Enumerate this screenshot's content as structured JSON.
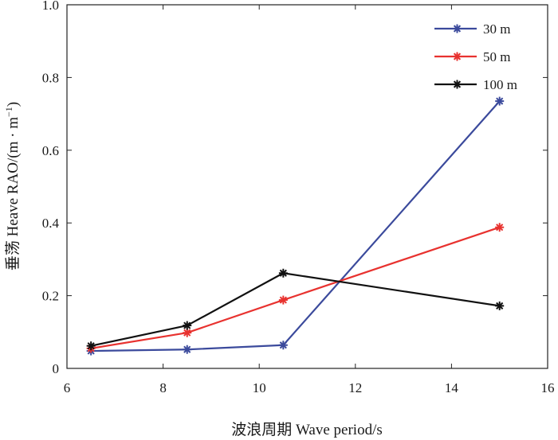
{
  "chart_data": {
    "type": "line",
    "title": "",
    "xlabel": "波浪周期 Wave period/s",
    "ylabel_main": "垂荡 Heave RAO/(m · m",
    "ylabel_sup": "−1",
    "ylabel_close": ")",
    "xlim": [
      6,
      16
    ],
    "ylim": [
      0,
      1.0
    ],
    "xticks": [
      6,
      8,
      10,
      12,
      14,
      16
    ],
    "yticks": [
      0,
      0.2,
      0.4,
      0.6,
      0.8,
      1.0
    ],
    "xtick_labels": [
      "6",
      "8",
      "10",
      "12",
      "14",
      "16"
    ],
    "ytick_labels": [
      "0",
      "0.2",
      "0.4",
      "0.6",
      "0.8",
      "1.0"
    ],
    "grid": false,
    "legend_position": "top-right",
    "marker": "asterisk",
    "series": [
      {
        "name": "30 m",
        "color": "#3b4a9c",
        "x": [
          6.5,
          8.5,
          10.5,
          15.0
        ],
        "y": [
          0.048,
          0.052,
          0.064,
          0.735
        ]
      },
      {
        "name": "50 m",
        "color": "#e8322f",
        "x": [
          6.5,
          8.5,
          10.5,
          15.0
        ],
        "y": [
          0.055,
          0.098,
          0.188,
          0.388
        ]
      },
      {
        "name": "100 m",
        "color": "#111111",
        "x": [
          6.5,
          8.5,
          10.5,
          15.0
        ],
        "y": [
          0.062,
          0.118,
          0.262,
          0.172
        ]
      }
    ]
  }
}
